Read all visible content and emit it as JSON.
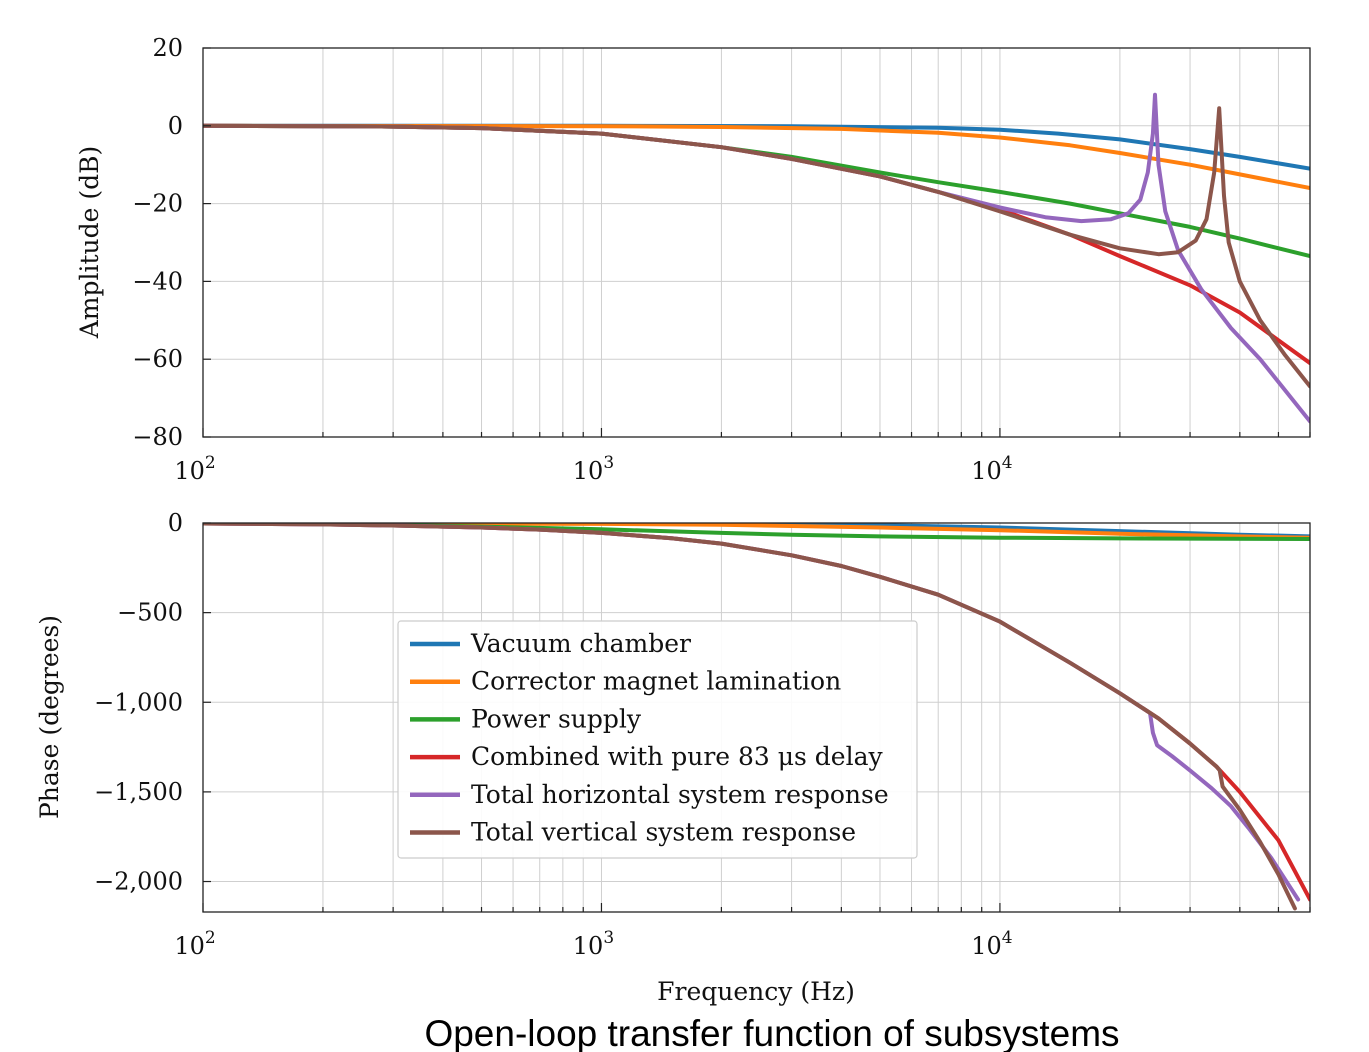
{
  "caption": "Open-loop transfer function of subsystems",
  "chart_data": [
    {
      "type": "line",
      "panel": "amplitude",
      "xlabel": "",
      "ylabel": "Amplitude (dB)",
      "x_scale": "log",
      "xlim": [
        100,
        60000
      ],
      "ylim": [
        -80,
        20
      ],
      "grid": true,
      "y_ticks": [
        20,
        0,
        -20,
        -40,
        -60,
        -80
      ],
      "y_tick_labels": [
        "20",
        "0",
        "−20",
        "−40",
        "−60",
        "−80"
      ],
      "x_ticks": [
        100,
        1000,
        10000
      ],
      "x_tick_labels": [
        {
          "base": "10",
          "exp": "2"
        },
        {
          "base": "10",
          "exp": "3"
        },
        {
          "base": "10",
          "exp": "4"
        }
      ],
      "series": [
        {
          "name": "Vacuum chamber",
          "color": "#1f77b4",
          "x": [
            100,
            1000,
            3000,
            7000,
            10000,
            14000,
            20000,
            30000,
            40000,
            60000
          ],
          "y": [
            0,
            0,
            -0.1,
            -0.5,
            -1.0,
            -2.0,
            -3.5,
            -6.0,
            -8.0,
            -11.0
          ]
        },
        {
          "name": "Corrector magnet lamination",
          "color": "#ff7f0e",
          "x": [
            100,
            1000,
            2000,
            4000,
            7000,
            10000,
            15000,
            20000,
            30000,
            40000,
            60000
          ],
          "y": [
            0,
            -0.1,
            -0.3,
            -0.8,
            -1.8,
            -3.0,
            -5.0,
            -7.0,
            -10.0,
            -12.5,
            -16.0
          ]
        },
        {
          "name": "Power supply",
          "color": "#2ca02c",
          "x": [
            100,
            300,
            500,
            1000,
            2000,
            3000,
            5000,
            7000,
            10000,
            15000,
            20000,
            30000,
            40000,
            60000
          ],
          "y": [
            0,
            -0.2,
            -0.6,
            -2.0,
            -5.5,
            -8.0,
            -12.0,
            -14.5,
            -17.0,
            -20.0,
            -22.5,
            -26.0,
            -29.0,
            -33.5
          ]
        },
        {
          "name": "Combined with pure 83 μs delay",
          "color": "#d62728",
          "x": [
            100,
            300,
            500,
            1000,
            2000,
            3000,
            5000,
            7000,
            10000,
            15000,
            20000,
            30000,
            40000,
            60000
          ],
          "y": [
            0,
            -0.2,
            -0.6,
            -2.0,
            -5.5,
            -8.5,
            -13.0,
            -17.0,
            -21.5,
            -28.0,
            -33.5,
            -41.0,
            -48.0,
            -61.0
          ]
        },
        {
          "name": "Total horizontal system response",
          "color": "#9467bd",
          "x": [
            100,
            300,
            500,
            1000,
            2000,
            3000,
            5000,
            7000,
            10000,
            13000,
            16000,
            19000,
            21000,
            22500,
            23500,
            24200,
            24500,
            25000,
            26000,
            28000,
            32000,
            38000,
            45000,
            60000
          ],
          "y": [
            0,
            -0.2,
            -0.6,
            -2.0,
            -5.5,
            -8.5,
            -13.0,
            -17.0,
            -21.0,
            -23.5,
            -24.5,
            -24.0,
            -22.5,
            -19.0,
            -12.0,
            -2.0,
            8.0,
            -10.0,
            -22.0,
            -32.0,
            -42.0,
            -52.0,
            -60.0,
            -76.0
          ]
        },
        {
          "name": "Total vertical system response",
          "color": "#8c564b",
          "x": [
            100,
            300,
            500,
            1000,
            2000,
            3000,
            5000,
            7000,
            10000,
            15000,
            20000,
            25000,
            28000,
            31000,
            33000,
            34500,
            35500,
            36500,
            37500,
            40000,
            45000,
            52000,
            60000
          ],
          "y": [
            0,
            -0.2,
            -0.6,
            -2.0,
            -5.5,
            -8.5,
            -13.0,
            -17.0,
            -22.0,
            -28.0,
            -31.5,
            -33.0,
            -32.5,
            -29.5,
            -24.0,
            -12.0,
            4.5,
            -18.0,
            -30.0,
            -40.0,
            -50.0,
            -59.0,
            -67.0
          ]
        }
      ]
    },
    {
      "type": "line",
      "panel": "phase",
      "xlabel": "Frequency (Hz)",
      "ylabel": "Phase (degrees)",
      "x_scale": "log",
      "xlim": [
        100,
        60000
      ],
      "ylim": [
        -2170,
        0
      ],
      "grid": true,
      "y_ticks": [
        0,
        -500,
        -1000,
        -1500,
        -2000
      ],
      "y_tick_labels": [
        "0",
        "−500",
        "−1,000",
        "−1,500",
        "−2,000"
      ],
      "x_ticks": [
        100,
        1000,
        10000
      ],
      "x_tick_labels": [
        {
          "base": "10",
          "exp": "2"
        },
        {
          "base": "10",
          "exp": "3"
        },
        {
          "base": "10",
          "exp": "4"
        }
      ],
      "legend": {
        "placement": "center-left"
      },
      "series": [
        {
          "name": "Vacuum chamber",
          "color": "#1f77b4",
          "x": [
            100,
            1000,
            3000,
            5000,
            10000,
            20000,
            40000,
            60000
          ],
          "y": [
            0,
            -2,
            -8,
            -12,
            -25,
            -45,
            -65,
            -75
          ]
        },
        {
          "name": "Corrector magnet lamination",
          "color": "#ff7f0e",
          "x": [
            100,
            1000,
            2000,
            5000,
            10000,
            20000,
            40000,
            60000
          ],
          "y": [
            0,
            -5,
            -10,
            -25,
            -40,
            -60,
            -75,
            -82
          ]
        },
        {
          "name": "Power supply",
          "color": "#2ca02c",
          "x": [
            100,
            300,
            1000,
            2000,
            3000,
            5000,
            10000,
            20000,
            60000
          ],
          "y": [
            0,
            -10,
            -35,
            -55,
            -65,
            -75,
            -82,
            -86,
            -89
          ]
        },
        {
          "name": "Combined with pure 83 μs delay",
          "color": "#d62728",
          "x": [
            100,
            200,
            300,
            500,
            700,
            1000,
            1500,
            2000,
            3000,
            4000,
            5000,
            7000,
            10000,
            15000,
            20000,
            25000,
            30000,
            35000,
            40000,
            50000,
            60000
          ],
          "y": [
            -3,
            -8,
            -14,
            -25,
            -37,
            -55,
            -85,
            -115,
            -180,
            -240,
            -300,
            -400,
            -550,
            -780,
            -950,
            -1090,
            -1230,
            -1360,
            -1500,
            -1770,
            -2100
          ]
        },
        {
          "name": "Total horizontal system response",
          "color": "#9467bd",
          "x": [
            100,
            200,
            300,
            500,
            700,
            1000,
            1500,
            2000,
            3000,
            4000,
            5000,
            7000,
            10000,
            15000,
            20000,
            23800,
            24200,
            24800,
            27000,
            30000,
            34000,
            38000,
            42000,
            48000,
            56000
          ],
          "y": [
            -3,
            -8,
            -14,
            -25,
            -37,
            -55,
            -85,
            -115,
            -180,
            -240,
            -300,
            -400,
            -550,
            -780,
            -950,
            -1060,
            -1170,
            -1240,
            -1300,
            -1380,
            -1480,
            -1580,
            -1700,
            -1870,
            -2100
          ]
        },
        {
          "name": "Total vertical system response",
          "color": "#8c564b",
          "x": [
            100,
            200,
            300,
            500,
            700,
            1000,
            1500,
            2000,
            3000,
            4000,
            5000,
            7000,
            10000,
            15000,
            20000,
            25000,
            30000,
            35000,
            35600,
            36200,
            40000,
            45000,
            50000,
            55000
          ],
          "y": [
            -3,
            -8,
            -14,
            -25,
            -37,
            -55,
            -85,
            -115,
            -180,
            -240,
            -300,
            -400,
            -550,
            -780,
            -950,
            -1090,
            -1230,
            -1360,
            -1380,
            -1470,
            -1600,
            -1780,
            -1960,
            -2150
          ]
        }
      ]
    }
  ]
}
